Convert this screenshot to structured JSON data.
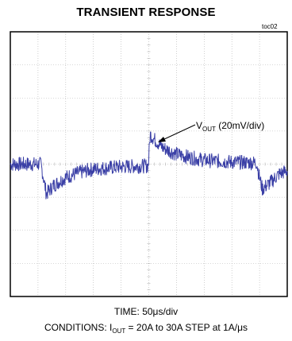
{
  "title": "TRANSIENT RESPONSE",
  "tag": "toc02",
  "annotation": {
    "main": "V",
    "sub": "OUT",
    "rest": " (20mV/div)"
  },
  "caption_time": "TIME: 50μs/div",
  "caption_conditions": {
    "prefix": "CONDITIONS:  I",
    "sub": "OUT",
    "rest": " = 20A to 30A STEP at 1A/μs"
  },
  "colors": {
    "trace": "#3a3fa6",
    "grid": "#b0b0b0",
    "frame": "#000000"
  },
  "chart_data": {
    "type": "line",
    "title": "TRANSIENT RESPONSE",
    "xlabel": "TIME: 50μs/div",
    "ylabel": "",
    "grid": true,
    "x_divisions": 10,
    "y_divisions": 8,
    "x_range_div": [
      0,
      10
    ],
    "y_range_div": [
      -4,
      4
    ],
    "series": [
      {
        "name": "VOUT (20mV/div)",
        "x_div": [
          0,
          1.1,
          1.15,
          1.3,
          1.55,
          2.0,
          2.5,
          3.0,
          4.0,
          4.98,
          5.05,
          5.2,
          5.5,
          6.0,
          6.5,
          7.0,
          8.0,
          8.9,
          8.97,
          9.1,
          9.4,
          9.7,
          10.0
        ],
        "y_div": [
          0,
          0,
          -0.2,
          -0.9,
          -0.65,
          -0.4,
          -0.25,
          -0.15,
          -0.08,
          -0.05,
          0.9,
          0.75,
          0.5,
          0.3,
          0.2,
          0.12,
          0.06,
          0.04,
          -0.3,
          -0.75,
          -0.55,
          -0.3,
          -0.2
        ]
      }
    ],
    "noise_div": 0.22
  }
}
